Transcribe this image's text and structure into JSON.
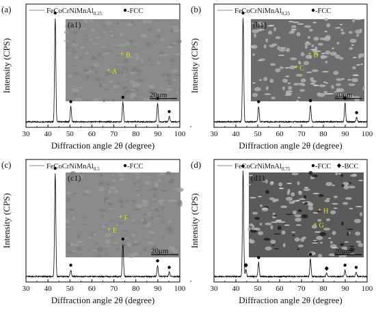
{
  "x_axis_title": "Diffraction angle 2θ (degree)",
  "y_axis_title": "Intensity (CPS)",
  "x_ticks": [
    "30",
    "40",
    "50",
    "60",
    "70",
    "80",
    "90",
    "100"
  ],
  "colors": {
    "trace": "#000000",
    "marker_fcc": "#000000",
    "marker_bcc": "#000000",
    "inset_label": "#e8e800",
    "micrograph_bg": "#8a8a8a"
  },
  "chart_data": [
    {
      "type": "line",
      "panel_label": "(a)",
      "legend_name": "FeCoCrNiMnAl",
      "legend_subscript": "0.25",
      "phase_fcc_label": "-FCC",
      "phase_bcc_label": "",
      "xlabel": "Diffraction angle 2θ (degree)",
      "ylabel": "Intensity (CPS)",
      "xlim": [
        30,
        100
      ],
      "peaks": [
        {
          "x": 43.3,
          "rel_height": 0.95,
          "phase": "FCC"
        },
        {
          "x": 50.4,
          "rel_height": 0.14,
          "phase": "FCC"
        },
        {
          "x": 74.1,
          "rel_height": 0.18,
          "phase": "FCC"
        },
        {
          "x": 89.9,
          "rel_height": 0.17,
          "phase": "FCC"
        },
        {
          "x": 95.2,
          "rel_height": 0.05,
          "phase": "FCC"
        }
      ],
      "inset": {
        "label": "(a1)",
        "scale_bar": "20μm",
        "points": [
          "A",
          "B"
        ]
      }
    },
    {
      "type": "line",
      "panel_label": "(b)",
      "legend_name": "FeCoCrNiMnAl",
      "legend_subscript": "0.25",
      "phase_fcc_label": "-FCC",
      "phase_bcc_label": "",
      "xlabel": "Diffraction angle 2θ (degree)",
      "ylabel": "Intensity (CPS)",
      "xlim": [
        30,
        100
      ],
      "peaks": [
        {
          "x": 43.3,
          "rel_height": 0.95,
          "phase": "FCC"
        },
        {
          "x": 50.4,
          "rel_height": 0.14,
          "phase": "FCC"
        },
        {
          "x": 74.1,
          "rel_height": 0.15,
          "phase": "FCC"
        },
        {
          "x": 89.9,
          "rel_height": 0.17,
          "phase": "FCC"
        },
        {
          "x": 95.2,
          "rel_height": 0.04,
          "phase": "FCC"
        }
      ],
      "inset": {
        "label": "(b1)",
        "scale_bar": "20μm",
        "points": [
          "C",
          "D"
        ]
      }
    },
    {
      "type": "line",
      "panel_label": "(c)",
      "legend_name": "FeCoCrNiMnAl",
      "legend_subscript": "0.5",
      "phase_fcc_label": "-FCC",
      "phase_bcc_label": "",
      "xlabel": "Diffraction angle 2θ (degree)",
      "ylabel": "Intensity (CPS)",
      "xlim": [
        30,
        100
      ],
      "peaks": [
        {
          "x": 43.3,
          "rel_height": 0.95,
          "phase": "FCC"
        },
        {
          "x": 50.4,
          "rel_height": 0.06,
          "phase": "FCC"
        },
        {
          "x": 74.1,
          "rel_height": 0.3,
          "phase": "FCC"
        },
        {
          "x": 89.9,
          "rel_height": 0.1,
          "phase": "FCC"
        },
        {
          "x": 95.2,
          "rel_height": 0.04,
          "phase": "FCC"
        }
      ],
      "inset": {
        "label": "(c1)",
        "scale_bar": "20μm",
        "points": [
          "E",
          "F"
        ]
      }
    },
    {
      "type": "line",
      "panel_label": "(d)",
      "legend_name": "FeCoCrNiMnAl",
      "legend_subscript": "0.75",
      "phase_fcc_label": "-FCC",
      "phase_bcc_label": "-BCC",
      "xlabel": "Diffraction angle 2θ (degree)",
      "ylabel": "Intensity (CPS)",
      "xlim": [
        30,
        100
      ],
      "peaks": [
        {
          "x": 43.3,
          "rel_height": 0.97,
          "phase": "FCC"
        },
        {
          "x": 44.6,
          "rel_height": 0.06,
          "phase": "BCC"
        },
        {
          "x": 50.4,
          "rel_height": 0.13,
          "phase": "FCC"
        },
        {
          "x": 74.1,
          "rel_height": 0.16,
          "phase": "FCC"
        },
        {
          "x": 81.5,
          "rel_height": 0.03,
          "phase": "BCC"
        },
        {
          "x": 89.9,
          "rel_height": 0.06,
          "phase": "FCC"
        },
        {
          "x": 95.0,
          "rel_height": 0.04,
          "phase": "FCC"
        }
      ],
      "inset": {
        "label": "(d1)",
        "scale_bar": "20μm",
        "points": [
          "G",
          "H"
        ]
      }
    }
  ]
}
